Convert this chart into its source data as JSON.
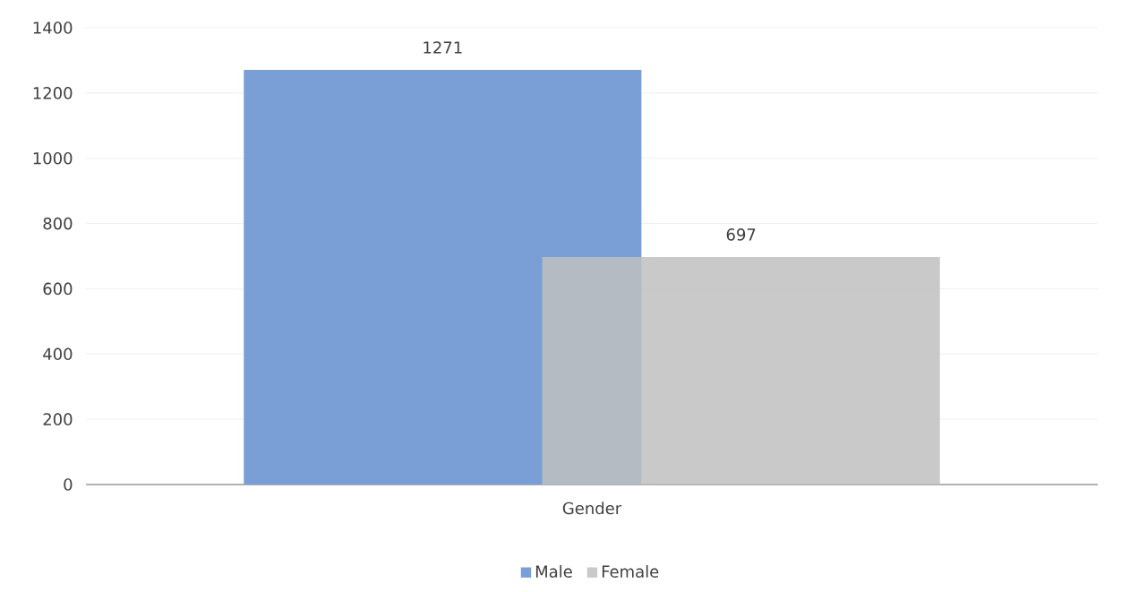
{
  "chart_data": {
    "type": "bar",
    "xlabel": "Gender",
    "categories": [
      null
    ],
    "series": [
      {
        "name": "Male",
        "color": "#7a9ed6",
        "values": [
          1271
        ]
      },
      {
        "name": "Female",
        "color": "#bfbfbf",
        "values": [
          697
        ]
      }
    ],
    "ylim": [
      0,
      1400
    ],
    "yticks": [
      0,
      200,
      400,
      600,
      800,
      1000,
      1200,
      1400
    ],
    "grid": "y",
    "legend": "bottom",
    "data_labels": true
  }
}
